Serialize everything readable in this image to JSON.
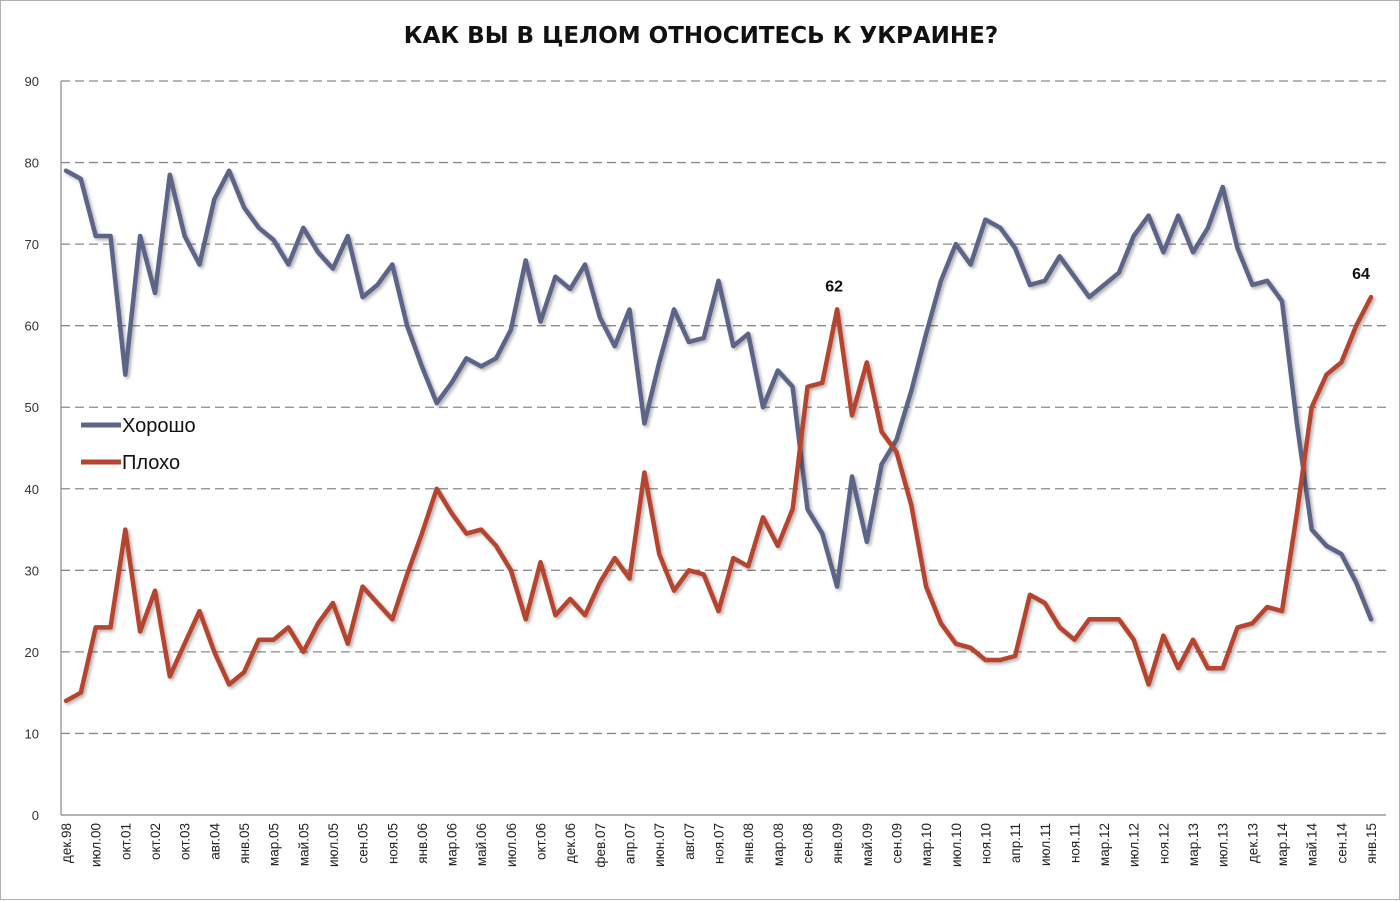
{
  "chart_data": {
    "type": "line",
    "title": "КАК ВЫ В ЦЕЛОМ ОТНОСИТЕСЬ К УКРАИНЕ?",
    "xlabel": "",
    "ylabel": "",
    "ylim": [
      0,
      90
    ],
    "yticks": [
      0,
      10,
      20,
      30,
      40,
      50,
      60,
      70,
      80,
      90
    ],
    "grid": true,
    "legend_position": "left-middle",
    "x_tick_labels": [
      "дек.98",
      "июл.00",
      "окт.01",
      "окт.02",
      "окт.03",
      "авг.04",
      "янв.05",
      "мар.05",
      "май.05",
      "июл.05",
      "сен.05",
      "ноя.05",
      "янв.06",
      "мар.06",
      "май.06",
      "июл.06",
      "окт.06",
      "дек.06",
      "фев.07",
      "апр.07",
      "июн.07",
      "авг.07",
      "ноя.07",
      "янв.08",
      "мар.08",
      "сен.08",
      "янв.09",
      "май.09",
      "сен.09",
      "мар.10",
      "июл.10",
      "ноя.10",
      "апр.11",
      "июл.11",
      "ноя.11",
      "мар.12",
      "июл.12",
      "ноя.12",
      "мар.13",
      "июл.13",
      "дек.13",
      "мар.14",
      "май.14",
      "сен.14",
      "янв.15"
    ],
    "series": [
      {
        "name": "Хорошо",
        "color": "#5b6588",
        "values": [
          79,
          78,
          71,
          71,
          54,
          71,
          64,
          78.5,
          71,
          67.5,
          75.5,
          79,
          74.5,
          72,
          70.5,
          67.5,
          72,
          69,
          67,
          71,
          63.5,
          65,
          67.5,
          60,
          55,
          50.5,
          53,
          56,
          55,
          56,
          59.5,
          68,
          60.5,
          66,
          64.5,
          67.5,
          61,
          57.5,
          62,
          48,
          55.5,
          62,
          58,
          58.5,
          65.5,
          57.5,
          59,
          50,
          54.5,
          52.5,
          37.5,
          34.5,
          28,
          41.5,
          33.5,
          43,
          46,
          52,
          59,
          65.5,
          70,
          67.5,
          73,
          72,
          69.5,
          65,
          65.5,
          68.5,
          66,
          63.5,
          65,
          66.5,
          71,
          73.5,
          69,
          73.5,
          69,
          72,
          77,
          69.5,
          65,
          65.5,
          63,
          48,
          35,
          33,
          32,
          28.5,
          24
        ]
      },
      {
        "name": "Плохо",
        "color": "#b5442e",
        "values": [
          14,
          15,
          23,
          23,
          35,
          22.5,
          27.5,
          17,
          21,
          25,
          20,
          16,
          17.5,
          21.5,
          21.5,
          23,
          20,
          23.5,
          26,
          21,
          28,
          26,
          24,
          29.5,
          34.5,
          40,
          37,
          34.5,
          35,
          33,
          30,
          24,
          31,
          24.5,
          26.5,
          24.5,
          28.5,
          31.5,
          29,
          42,
          32,
          27.5,
          30,
          29.5,
          25,
          31.5,
          30.5,
          36.5,
          33,
          37.5,
          52.5,
          53,
          62,
          49,
          55.5,
          47,
          44.5,
          38,
          28,
          23.5,
          21,
          20.5,
          19,
          19,
          19.5,
          27,
          26,
          23,
          21.5,
          24,
          24,
          24,
          21.5,
          16,
          22,
          18,
          21.5,
          18,
          18,
          23,
          23.5,
          25.5,
          25,
          37,
          50,
          54,
          55.5,
          60,
          63.5
        ]
      }
    ],
    "annotations": [
      {
        "series": "Плохо",
        "index": 52,
        "text": "62"
      },
      {
        "series": "Плохо",
        "index": 88,
        "text": "64"
      }
    ]
  }
}
